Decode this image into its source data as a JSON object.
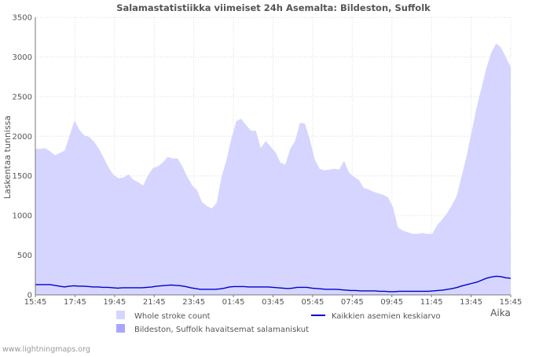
{
  "chart_data": {
    "type": "area",
    "title": "Salamastatistiikka viimeiset 24h Asemalta: Bildeston, Suffolk",
    "xlabel": "Aika",
    "ylabel": "Laskentaa tunnissa",
    "ylim": [
      0,
      3500
    ],
    "yticks": [
      0,
      500,
      1000,
      1500,
      2000,
      2500,
      3000,
      3500
    ],
    "xtick_labels": [
      "15:45",
      "17:45",
      "19:45",
      "21:45",
      "23:45",
      "01:45",
      "03:45",
      "05:45",
      "07:45",
      "09:45",
      "11:45",
      "13:45",
      "15:45"
    ],
    "grid": true,
    "series": [
      {
        "name": "Whole stroke count",
        "kind": "area",
        "color": "#d5d5ff",
        "values": [
          1840,
          1840,
          1850,
          1810,
          1760,
          1790,
          1820,
          2010,
          2200,
          2080,
          2010,
          1990,
          1930,
          1840,
          1720,
          1600,
          1510,
          1470,
          1480,
          1520,
          1450,
          1420,
          1380,
          1510,
          1600,
          1620,
          1670,
          1740,
          1720,
          1720,
          1620,
          1490,
          1380,
          1320,
          1170,
          1120,
          1090,
          1160,
          1490,
          1700,
          1970,
          2190,
          2220,
          2140,
          2070,
          2070,
          1850,
          1940,
          1870,
          1800,
          1670,
          1640,
          1840,
          1940,
          2170,
          2160,
          1960,
          1710,
          1590,
          1570,
          1580,
          1590,
          1580,
          1690,
          1540,
          1490,
          1450,
          1350,
          1330,
          1300,
          1280,
          1260,
          1230,
          1100,
          850,
          810,
          790,
          770,
          770,
          780,
          770,
          770,
          880,
          950,
          1030,
          1130,
          1250,
          1500,
          1750,
          2050,
          2350,
          2600,
          2850,
          3050,
          3170,
          3120,
          3000,
          2870
        ]
      },
      {
        "name": "Bildeston, Suffolk havaitsemat salamaniskut",
        "kind": "area",
        "color": "#a7a7ff",
        "values": []
      },
      {
        "name": "Kaikkien asemien keskiarvo",
        "kind": "line",
        "color": "#0000cc",
        "values": [
          130,
          130,
          130,
          130,
          120,
          110,
          100,
          110,
          115,
          110,
          110,
          105,
          100,
          100,
          95,
          95,
          90,
          85,
          90,
          90,
          90,
          90,
          90,
          95,
          100,
          110,
          115,
          120,
          125,
          120,
          115,
          105,
          90,
          80,
          70,
          70,
          70,
          70,
          75,
          85,
          100,
          105,
          105,
          105,
          100,
          100,
          100,
          100,
          100,
          95,
          90,
          85,
          80,
          85,
          95,
          95,
          95,
          85,
          80,
          75,
          70,
          70,
          70,
          65,
          60,
          55,
          55,
          50,
          50,
          50,
          50,
          45,
          45,
          40,
          40,
          45,
          45,
          45,
          45,
          45,
          45,
          45,
          50,
          55,
          60,
          70,
          80,
          95,
          115,
          130,
          145,
          160,
          185,
          210,
          225,
          235,
          230,
          215,
          210
        ]
      }
    ],
    "legend": [
      {
        "label": "Whole stroke count",
        "kind": "area",
        "color": "#d5d5ff"
      },
      {
        "label": "Kaikkien asemien keskiarvo",
        "kind": "line",
        "color": "#0000cc"
      },
      {
        "label": "Bildeston, Suffolk havaitsemat salamaniskut",
        "kind": "area",
        "color": "#a7a7ff"
      }
    ],
    "legend_position": "bottom"
  },
  "footer": {
    "credit": "www.lightningmaps.org"
  }
}
